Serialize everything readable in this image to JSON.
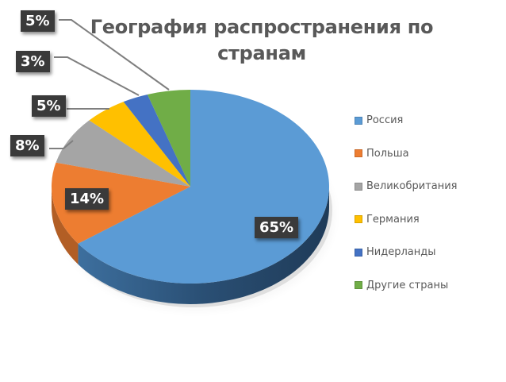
{
  "chart_data": {
    "type": "pie",
    "title": "География распространения по странам",
    "title_lines": [
      "География распространения по",
      "странам"
    ],
    "categories": [
      "Россия",
      "Польша",
      "Великобритания",
      "Германия",
      "Нидерланды",
      "Другие страны"
    ],
    "values": [
      65,
      14,
      8,
      5,
      3,
      5
    ],
    "labels": [
      "65%",
      "14%",
      "8%",
      "5%",
      "3%",
      "5%"
    ],
    "colors": [
      "#5B9BD5",
      "#ED7D31",
      "#A5A5A5",
      "#FFC000",
      "#4472C4",
      "#70AD47"
    ],
    "legend_position": "right",
    "style": "3d"
  }
}
